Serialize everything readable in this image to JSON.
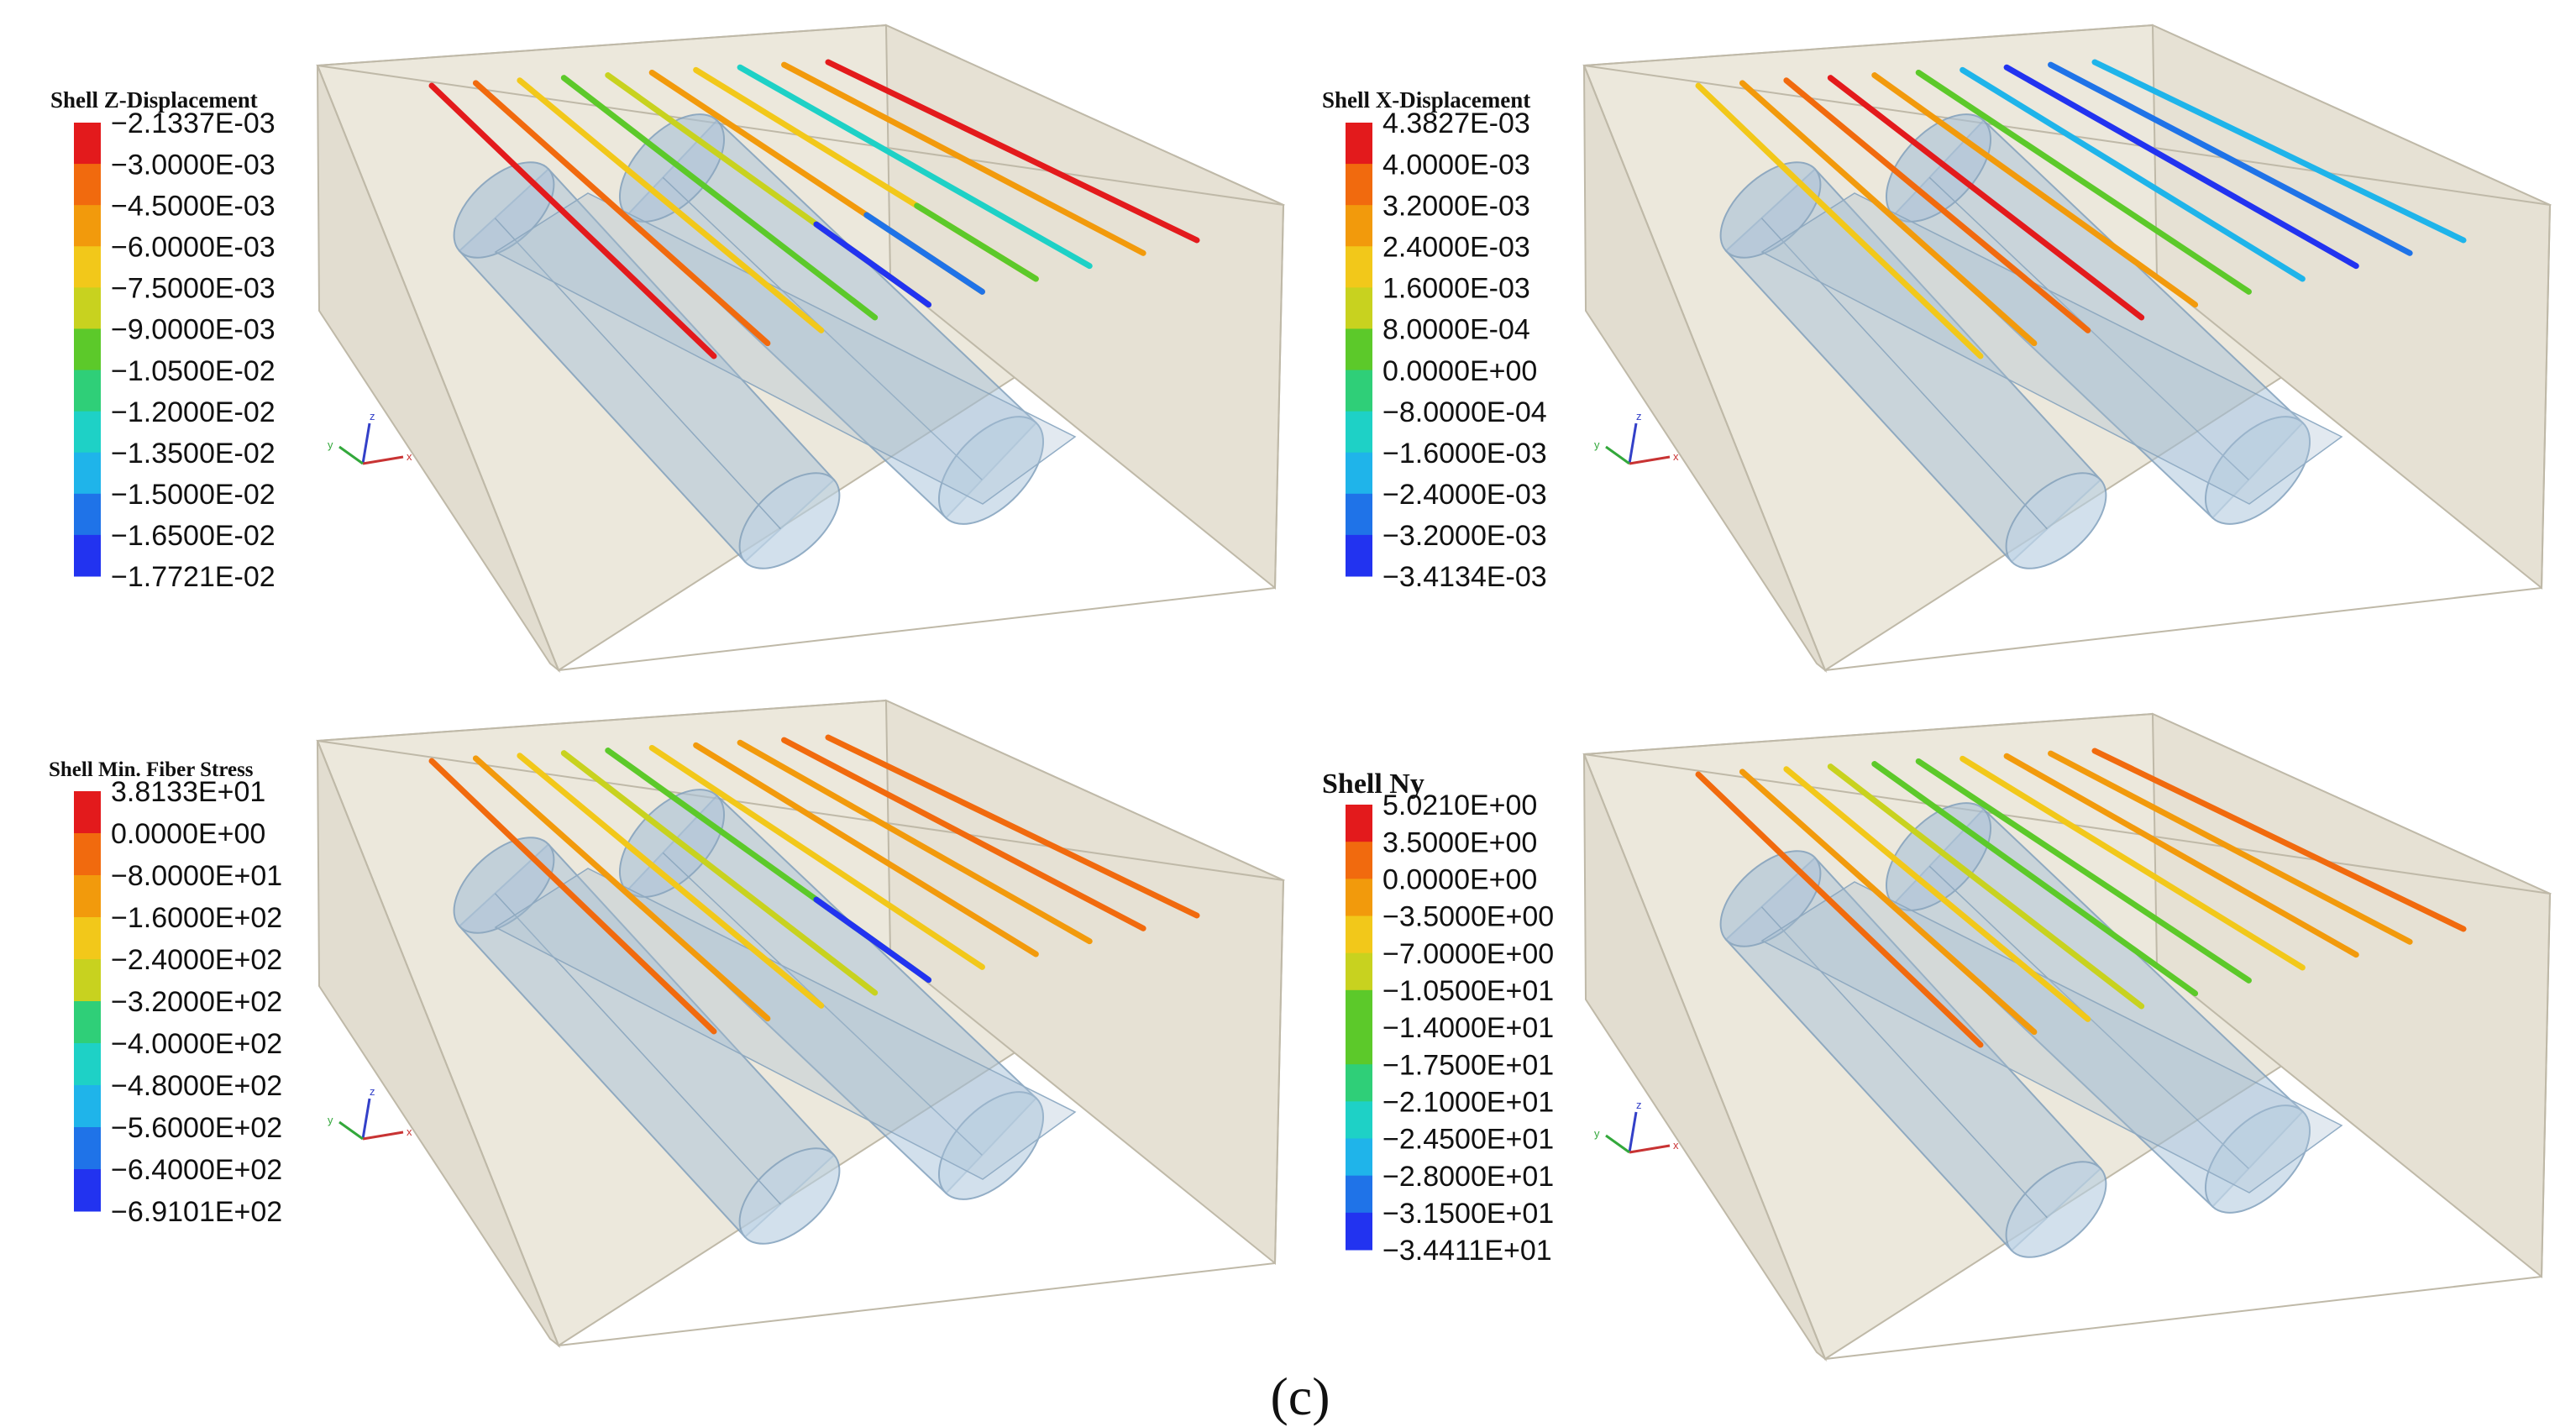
{
  "figure_label": "(c)",
  "colors": {
    "box_fill": "#ece8dc",
    "box_edge": "#bfb9a8",
    "tunnel_fill": "#a6c1d8",
    "tunnel_edge": "#7f9fbc",
    "scale": [
      "#e31a1c",
      "#f16a0e",
      "#f29a0c",
      "#f2c81a",
      "#c8d21f",
      "#5cc92a",
      "#2fcf78",
      "#1ed1c6",
      "#1fb4ea",
      "#1f73e8",
      "#2233f0"
    ]
  },
  "panels": [
    {
      "id": "z-displacement",
      "legend_title": "Shell Z-Displacement",
      "ticks": [
        "−2.1337E-03",
        "−3.0000E-03",
        "−4.5000E-03",
        "−6.0000E-03",
        "−7.5000E-03",
        "−9.0000E-03",
        "−1.0500E-02",
        "−1.2000E-02",
        "−1.3500E-02",
        "−1.5000E-02",
        "−1.6500E-02",
        "−1.7721E-02"
      ],
      "bolt_colors": [
        "#e31a1c",
        "#f16a0e",
        "#f2c81a",
        "#5cc92a",
        "#c8d21f",
        "#f29a0c",
        "#f2c81a",
        "#1ed1c6",
        "#f29a0c",
        "#e31a1c"
      ],
      "bolt_tail_colors": [
        null,
        null,
        null,
        null,
        "#2233f0",
        "#1f73e8",
        "#5cc92a",
        null,
        null,
        null
      ],
      "axes_icon": {
        "z": "z",
        "y": "y",
        "x": "x"
      }
    },
    {
      "id": "x-displacement",
      "legend_title": "Shell X-Displacement",
      "ticks": [
        "4.3827E-03",
        "4.0000E-03",
        "3.2000E-03",
        "2.4000E-03",
        "1.6000E-03",
        "8.0000E-04",
        "0.0000E+00",
        "−8.0000E-04",
        "−1.6000E-03",
        "−2.4000E-03",
        "−3.2000E-03",
        "−3.4134E-03"
      ],
      "bolt_colors": [
        "#f2c81a",
        "#f29a0c",
        "#f16a0e",
        "#e31a1c",
        "#f29a0c",
        "#5cc92a",
        "#1fb4ea",
        "#2233f0",
        "#1f73e8",
        "#1fb4ea"
      ],
      "bolt_tail_colors": [
        null,
        null,
        null,
        null,
        null,
        null,
        null,
        null,
        null,
        null
      ],
      "axes_icon": {
        "z": "z",
        "y": "y",
        "x": "x"
      }
    },
    {
      "id": "min-fiber-stress",
      "legend_title": "Shell Min. Fiber Stress",
      "ticks": [
        "3.8133E+01",
        "0.0000E+00",
        "−8.0000E+01",
        "−1.6000E+02",
        "−2.4000E+02",
        "−3.2000E+02",
        "−4.0000E+02",
        "−4.8000E+02",
        "−5.6000E+02",
        "−6.4000E+02",
        "−6.9101E+02"
      ],
      "bolt_colors": [
        "#f16a0e",
        "#f29a0c",
        "#f2c81a",
        "#c8d21f",
        "#5cc92a",
        "#f2c81a",
        "#f29a0c",
        "#f29a0c",
        "#f16a0e",
        "#f16a0e"
      ],
      "bolt_tail_colors": [
        null,
        null,
        null,
        null,
        "#2233f0",
        null,
        null,
        null,
        null,
        null
      ],
      "axes_icon": {
        "z": "z",
        "y": "y",
        "x": "x"
      }
    },
    {
      "id": "ny",
      "legend_title": "Shell Ny",
      "ticks": [
        "5.0210E+00",
        "3.5000E+00",
        "0.0000E+00",
        "−3.5000E+00",
        "−7.0000E+00",
        "−1.0500E+01",
        "−1.4000E+01",
        "−1.7500E+01",
        "−2.1000E+01",
        "−2.4500E+01",
        "−2.8000E+01",
        "−3.1500E+01",
        "−3.4411E+01"
      ],
      "bolt_colors": [
        "#f16a0e",
        "#f29a0c",
        "#f2c81a",
        "#c8d21f",
        "#5cc92a",
        "#5cc92a",
        "#f2c81a",
        "#f29a0c",
        "#f29a0c",
        "#f16a0e"
      ],
      "bolt_tail_colors": [
        null,
        null,
        null,
        null,
        null,
        null,
        null,
        null,
        null,
        null
      ],
      "axes_icon": {
        "z": "z",
        "y": "y",
        "x": "x"
      }
    }
  ]
}
